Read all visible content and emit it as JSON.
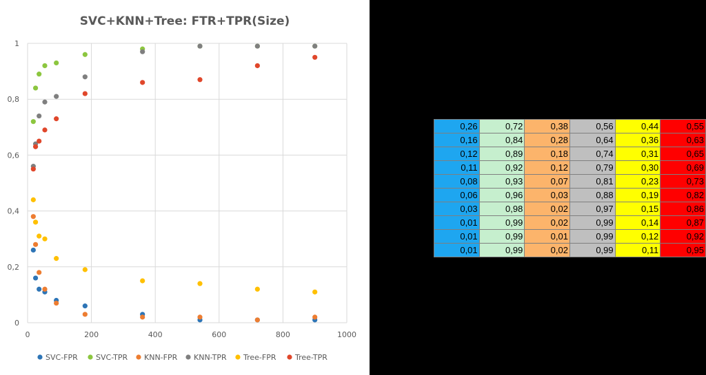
{
  "chart_data": {
    "type": "scatter",
    "title": "SVC+KNN+Tree: FTR+TPR(Size)",
    "xlim": [
      0,
      1000
    ],
    "ylim": [
      0,
      1
    ],
    "x_ticks": [
      "0",
      "200",
      "400",
      "600",
      "800",
      "1000"
    ],
    "y_ticks": [
      "0",
      "0,2",
      "0,4",
      "0,6",
      "0,8",
      "1"
    ],
    "grid": true,
    "legend_position": "bottom",
    "x": [
      18,
      25,
      36,
      54,
      90,
      180,
      360,
      540,
      720,
      900
    ],
    "series": [
      {
        "name": "SVC-FPR",
        "color": "#2E75B6",
        "values": [
          0.26,
          0.16,
          0.12,
          0.11,
          0.08,
          0.06,
          0.03,
          0.01,
          0.01,
          0.01
        ]
      },
      {
        "name": "SVC-TPR",
        "color": "#8CC63F",
        "values": [
          0.72,
          0.84,
          0.89,
          0.92,
          0.93,
          0.96,
          0.98,
          0.99,
          0.99,
          0.99
        ]
      },
      {
        "name": "KNN-FPR",
        "color": "#ED7D31",
        "values": [
          0.38,
          0.28,
          0.18,
          0.12,
          0.07,
          0.03,
          0.02,
          0.02,
          0.01,
          0.02
        ]
      },
      {
        "name": "KNN-TPR",
        "color": "#7F7F7F",
        "values": [
          0.56,
          0.64,
          0.74,
          0.79,
          0.81,
          0.88,
          0.97,
          0.99,
          0.99,
          0.99
        ]
      },
      {
        "name": "Tree-FPR",
        "color": "#FFC000",
        "values": [
          0.44,
          0.36,
          0.31,
          0.3,
          0.23,
          0.19,
          0.15,
          0.14,
          0.12,
          0.11
        ]
      },
      {
        "name": "Tree-TPR",
        "color": "#E0472B",
        "values": [
          0.55,
          0.63,
          0.65,
          0.69,
          0.73,
          0.82,
          0.86,
          0.87,
          0.92,
          0.95
        ]
      }
    ]
  },
  "table": {
    "column_colors": [
      "#1EA6F0",
      "#C6EFCE",
      "#FCB46B",
      "#BFBFBF",
      "#FFFF00",
      "#FF0000"
    ],
    "rows": [
      [
        "0,26",
        "0,72",
        "0,38",
        "0,56",
        "0,44",
        "0,55"
      ],
      [
        "0,16",
        "0,84",
        "0,28",
        "0,64",
        "0,36",
        "0,63"
      ],
      [
        "0,12",
        "0,89",
        "0,18",
        "0,74",
        "0,31",
        "0,65"
      ],
      [
        "0,11",
        "0,92",
        "0,12",
        "0,79",
        "0,30",
        "0,69"
      ],
      [
        "0,08",
        "0,93",
        "0,07",
        "0,81",
        "0,23",
        "0,73"
      ],
      [
        "0,06",
        "0,96",
        "0,03",
        "0,88",
        "0,19",
        "0,82"
      ],
      [
        "0,03",
        "0,98",
        "0,02",
        "0,97",
        "0,15",
        "0,86"
      ],
      [
        "0,01",
        "0,99",
        "0,02",
        "0,99",
        "0,14",
        "0,87"
      ],
      [
        "0,01",
        "0,99",
        "0,01",
        "0,99",
        "0,12",
        "0,92"
      ],
      [
        "0,01",
        "0,99",
        "0,02",
        "0,99",
        "0,11",
        "0,95"
      ]
    ]
  }
}
